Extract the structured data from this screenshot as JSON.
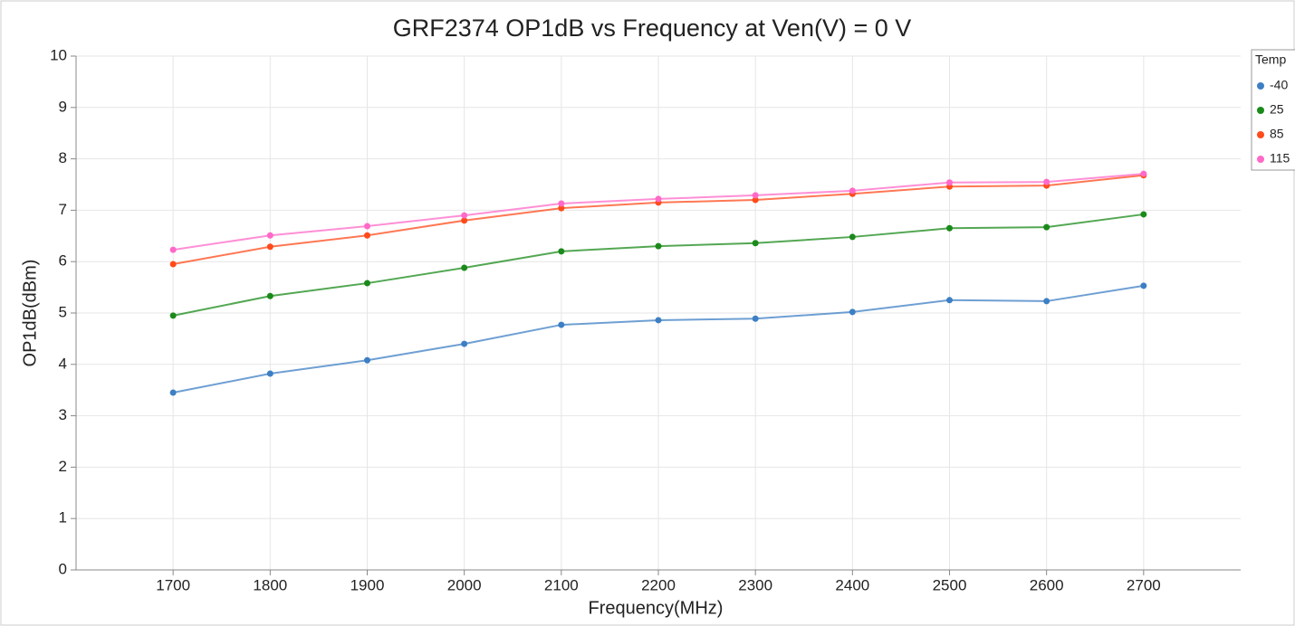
{
  "chart_data": {
    "type": "line",
    "title": "GRF2374 OP1dB vs Frequency at Ven(V) = 0 V",
    "xlabel": "Frequency(MHz)",
    "ylabel": "OP1dB(dBm)",
    "legend_title": "Temp",
    "legend": "right",
    "grid": true,
    "x": [
      1700,
      1800,
      1900,
      2000,
      2100,
      2200,
      2300,
      2400,
      2500,
      2600,
      2700
    ],
    "xlim": [
      1600,
      2800
    ],
    "xticks": [
      1700,
      1800,
      1900,
      2000,
      2100,
      2200,
      2300,
      2400,
      2500,
      2600,
      2700
    ],
    "ylim": [
      0,
      10
    ],
    "yticks": [
      0,
      1,
      2,
      3,
      4,
      5,
      6,
      7,
      8,
      9,
      10
    ],
    "series": [
      {
        "name": "-40",
        "color": "#3d7fc4",
        "values": [
          3.45,
          3.82,
          4.08,
          4.4,
          4.77,
          4.86,
          4.89,
          5.02,
          5.25,
          5.23,
          5.53
        ]
      },
      {
        "name": "25",
        "color": "#1a8a1a",
        "values": [
          4.95,
          5.33,
          5.58,
          5.88,
          6.2,
          6.3,
          6.36,
          6.48,
          6.65,
          6.67,
          6.92
        ]
      },
      {
        "name": "85",
        "color": "#ff4a1a",
        "values": [
          5.95,
          6.29,
          6.51,
          6.8,
          7.04,
          7.15,
          7.2,
          7.32,
          7.46,
          7.48,
          7.68
        ]
      },
      {
        "name": "115",
        "color": "#ff69c8",
        "values": [
          6.23,
          6.51,
          6.69,
          6.9,
          7.13,
          7.22,
          7.29,
          7.38,
          7.54,
          7.55,
          7.71
        ]
      }
    ]
  }
}
